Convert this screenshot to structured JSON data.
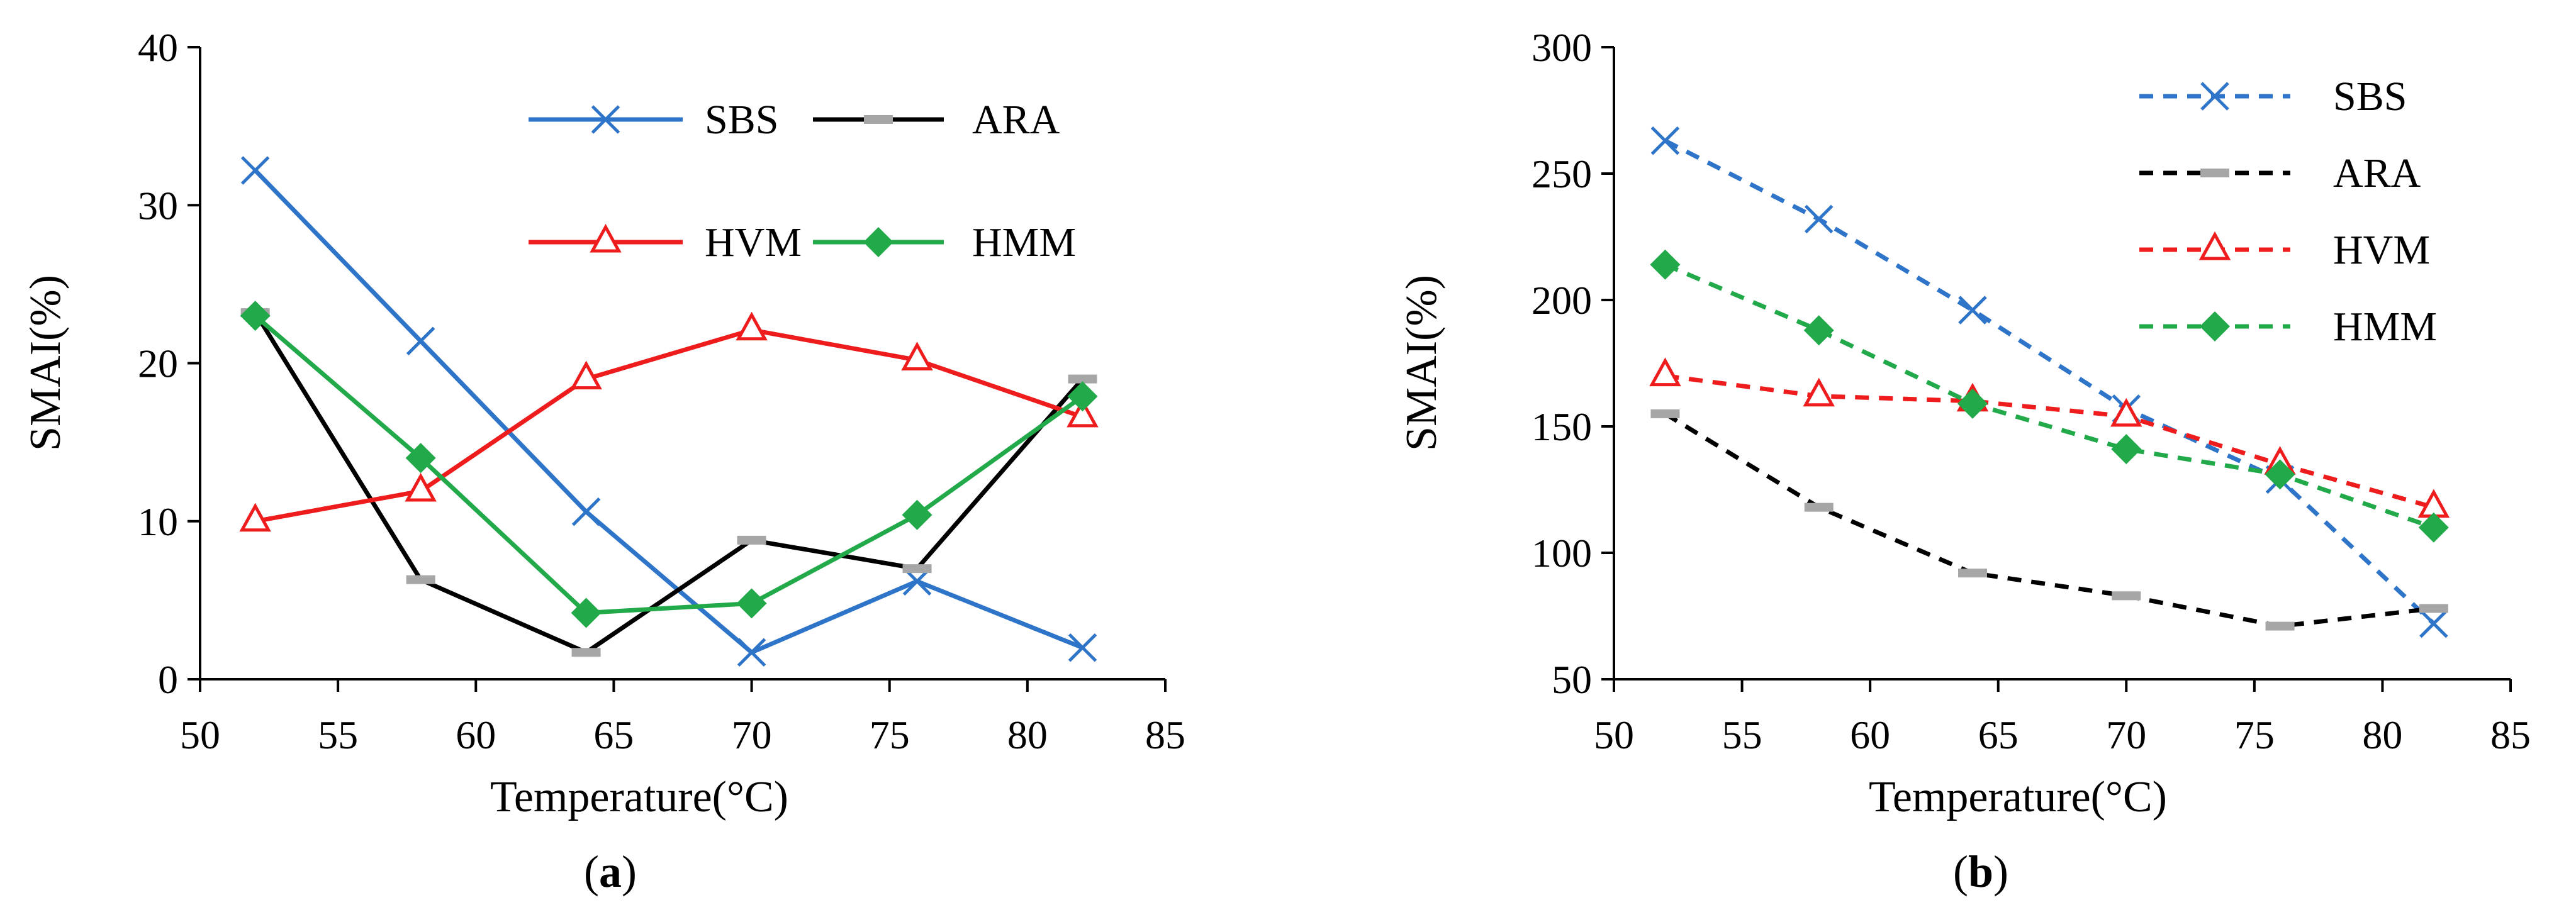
{
  "colors": {
    "SBS": "#2e75c9",
    "ARA": "#000000",
    "ARA_marker": "#a6a6a6",
    "HVM": "#ee1c1c",
    "HMM": "#21a94a"
  },
  "chart_data": [
    {
      "type": "line",
      "panel": "a",
      "caption": {
        "open": "(",
        "letter": "a",
        "close": ")"
      },
      "xlabel": "Temperature(°C)",
      "ylabel": "SMAI(%)",
      "xlim": [
        50,
        85
      ],
      "ylim": [
        0,
        40
      ],
      "xticks": [
        "50",
        "55",
        "60",
        "65",
        "70",
        "75",
        "80",
        "85"
      ],
      "yticks": [
        "0",
        "10",
        "20",
        "30",
        "40"
      ],
      "grid": false,
      "legend_layout": "two-column",
      "x": [
        52,
        58,
        64,
        70,
        76,
        82
      ],
      "series": [
        {
          "name": "SBS",
          "color": "#2e75c9",
          "marker": "x",
          "dash": "solid",
          "values": [
            32.2,
            21.4,
            10.6,
            1.7,
            6.2,
            2.0
          ]
        },
        {
          "name": "ARA",
          "color": "#000000",
          "marker": "dash",
          "dash": "solid",
          "values": [
            23.2,
            6.3,
            1.7,
            8.8,
            7.0,
            19.0
          ]
        },
        {
          "name": "HVM",
          "color": "#ee1c1c",
          "marker": "triangle",
          "dash": "solid",
          "values": [
            10.0,
            11.9,
            19.0,
            22.1,
            20.2,
            16.6
          ]
        },
        {
          "name": "HMM",
          "color": "#21a94a",
          "marker": "diamond",
          "dash": "solid",
          "values": [
            23.0,
            14.0,
            4.2,
            4.8,
            10.4,
            17.9
          ]
        }
      ]
    },
    {
      "type": "line",
      "panel": "b",
      "caption": {
        "open": "(",
        "letter": "b",
        "close": ")"
      },
      "xlabel": "Temperature(°C)",
      "ylabel": "SMAI(%)",
      "xlim": [
        50,
        85
      ],
      "ylim": [
        50,
        300
      ],
      "xticks": [
        "50",
        "55",
        "60",
        "65",
        "70",
        "75",
        "80",
        "85"
      ],
      "yticks": [
        "50",
        "100",
        "150",
        "200",
        "250",
        "300"
      ],
      "grid": false,
      "legend_layout": "single-column",
      "x": [
        52,
        58,
        64,
        70,
        76,
        82
      ],
      "series": [
        {
          "name": "SBS",
          "color": "#2e75c9",
          "marker": "x",
          "dash": "dashed",
          "values": [
            263,
            232,
            196,
            157,
            129,
            72
          ]
        },
        {
          "name": "ARA",
          "color": "#000000",
          "marker": "dash",
          "dash": "dashed",
          "values": [
            155,
            118,
            92,
            83,
            71,
            78
          ]
        },
        {
          "name": "HVM",
          "color": "#ee1c1c",
          "marker": "triangle",
          "dash": "dashed",
          "values": [
            170,
            162,
            160,
            154,
            135,
            118
          ]
        },
        {
          "name": "HMM",
          "color": "#21a94a",
          "marker": "diamond",
          "dash": "dashed",
          "values": [
            214,
            188,
            159,
            141,
            131,
            110
          ]
        }
      ]
    }
  ]
}
